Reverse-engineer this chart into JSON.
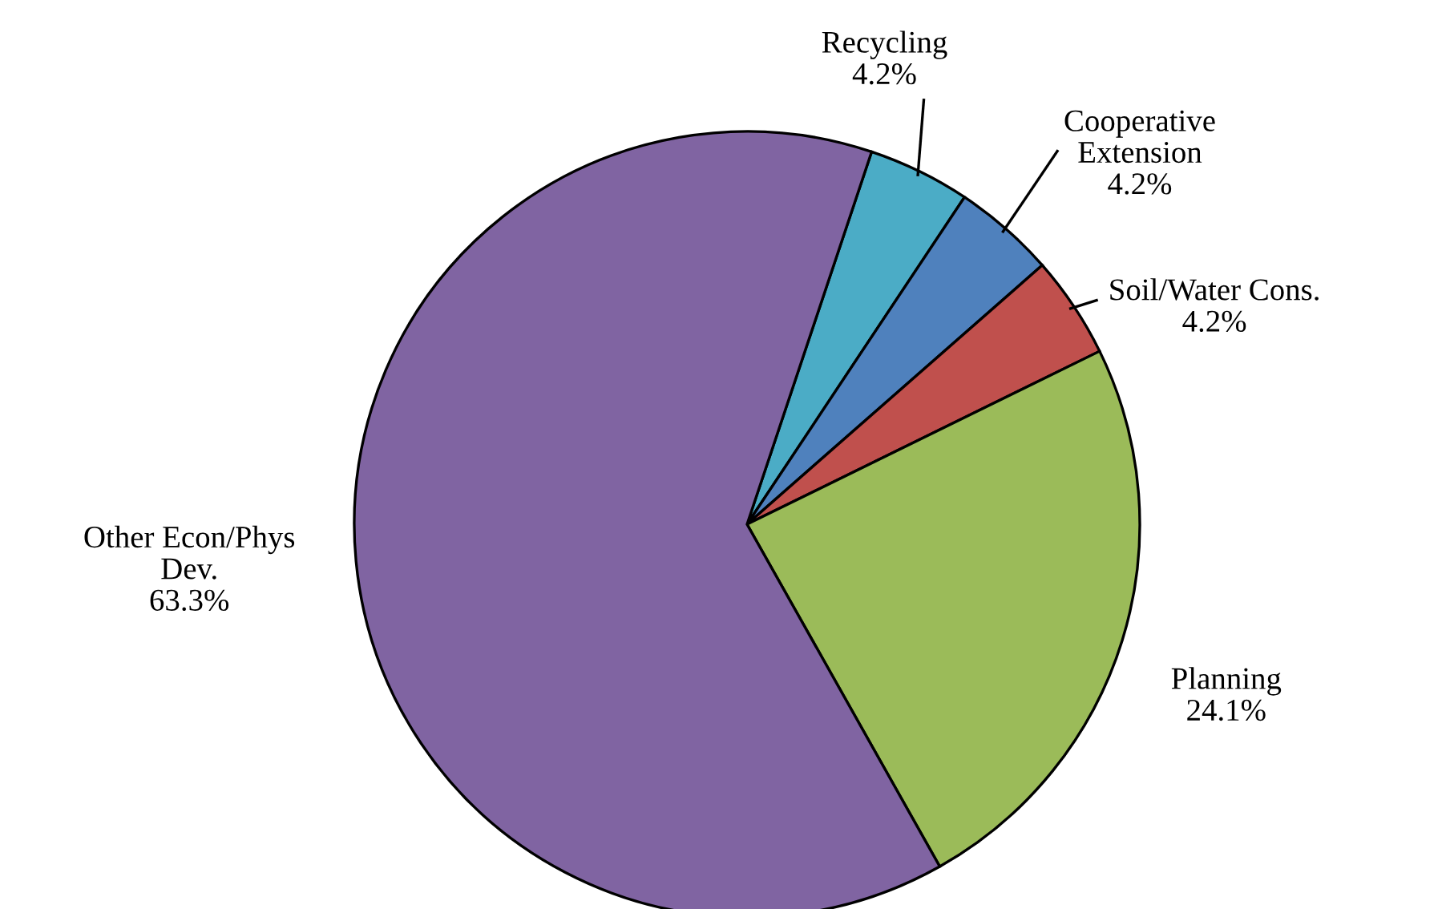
{
  "chart_data": {
    "type": "pie",
    "categories": [
      "Recycling",
      "Cooperative\nExtension",
      "Soil/Water Cons.",
      "Planning",
      "Other Econ/Phys\nDev."
    ],
    "values": [
      4.2,
      4.2,
      4.2,
      24.1,
      63.3
    ],
    "value_labels": [
      "4.2%",
      "4.2%",
      "4.2%",
      "24.1%",
      "63.3%"
    ],
    "colors": [
      "#4bacc6",
      "#4f81bd",
      "#c0504d",
      "#9bbb59",
      "#8064a2"
    ],
    "legend": false
  }
}
